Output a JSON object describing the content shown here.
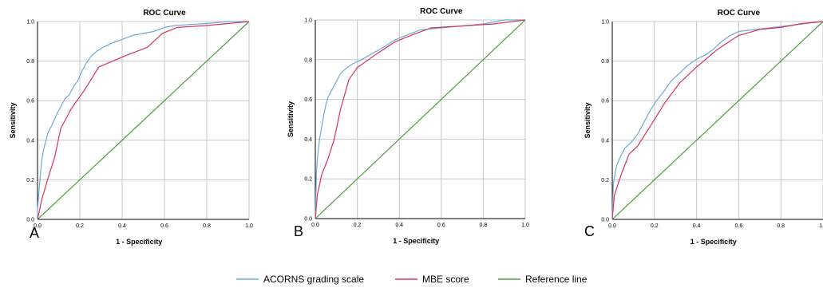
{
  "chart_data": [
    {
      "type": "line",
      "panel_label": "A",
      "title": "ROC Curve",
      "xlabel": "1 - Specificity",
      "ylabel": "Sensitivity",
      "xlim": [
        0,
        1
      ],
      "ylim": [
        0,
        1
      ],
      "xticks": [
        "0.0",
        "0.2",
        "0.4",
        "0.6",
        "0.8",
        "1.0"
      ],
      "yticks": [
        "0.0",
        "0.2",
        "0.4",
        "0.6",
        "0.8",
        "1.0"
      ],
      "grid": true,
      "series": [
        {
          "name": "ACORNS grading scale",
          "color": "#6fa8dc",
          "points": [
            [
              0,
              0
            ],
            [
              0,
              0.05
            ],
            [
              0.01,
              0.18
            ],
            [
              0.02,
              0.3
            ],
            [
              0.03,
              0.36
            ],
            [
              0.05,
              0.44
            ],
            [
              0.07,
              0.48
            ],
            [
              0.09,
              0.53
            ],
            [
              0.11,
              0.57
            ],
            [
              0.13,
              0.61
            ],
            [
              0.15,
              0.63
            ],
            [
              0.17,
              0.67
            ],
            [
              0.19,
              0.7
            ],
            [
              0.21,
              0.75
            ],
            [
              0.23,
              0.79
            ],
            [
              0.25,
              0.82
            ],
            [
              0.28,
              0.85
            ],
            [
              0.31,
              0.87
            ],
            [
              0.35,
              0.89
            ],
            [
              0.4,
              0.91
            ],
            [
              0.45,
              0.93
            ],
            [
              0.5,
              0.94
            ],
            [
              0.55,
              0.95
            ],
            [
              0.6,
              0.97
            ],
            [
              0.65,
              0.98
            ],
            [
              0.72,
              0.985
            ],
            [
              0.8,
              0.99
            ],
            [
              0.9,
              1.0
            ],
            [
              1.0,
              1.0
            ]
          ]
        },
        {
          "name": "MBE score",
          "color": "#d5345c",
          "points": [
            [
              0,
              0
            ],
            [
              0.02,
              0.1
            ],
            [
              0.05,
              0.21
            ],
            [
              0.08,
              0.31
            ],
            [
              0.11,
              0.46
            ],
            [
              0.16,
              0.56
            ],
            [
              0.22,
              0.65
            ],
            [
              0.29,
              0.77
            ],
            [
              0.4,
              0.82
            ],
            [
              0.52,
              0.87
            ],
            [
              0.59,
              0.94
            ],
            [
              0.66,
              0.97
            ],
            [
              0.8,
              0.98
            ],
            [
              0.9,
              0.99
            ],
            [
              1.0,
              1.0
            ]
          ]
        },
        {
          "name": "Reference line",
          "color": "#4e9b3f",
          "points": [
            [
              0,
              0
            ],
            [
              1,
              1
            ]
          ]
        }
      ]
    },
    {
      "type": "line",
      "panel_label": "B",
      "title": "ROC Curve",
      "xlabel": "1 - Specificity",
      "ylabel": "Sensitivity",
      "xlim": [
        0,
        1
      ],
      "ylim": [
        0,
        1
      ],
      "xticks": [
        "0.0",
        "0.2",
        "0.4",
        "0.6",
        "0.8",
        "1.0"
      ],
      "yticks": [
        "0.0",
        "0.2",
        "0.4",
        "0.6",
        "0.8",
        "1.0"
      ],
      "grid": true,
      "series": [
        {
          "name": "ACORNS grading scale",
          "color": "#6fa8dc",
          "points": [
            [
              0,
              0
            ],
            [
              0.005,
              0.22
            ],
            [
              0.01,
              0.3
            ],
            [
              0.02,
              0.4
            ],
            [
              0.03,
              0.46
            ],
            [
              0.04,
              0.52
            ],
            [
              0.05,
              0.57
            ],
            [
              0.06,
              0.61
            ],
            [
              0.08,
              0.65
            ],
            [
              0.1,
              0.69
            ],
            [
              0.12,
              0.73
            ],
            [
              0.15,
              0.76
            ],
            [
              0.18,
              0.78
            ],
            [
              0.22,
              0.8
            ],
            [
              0.27,
              0.83
            ],
            [
              0.32,
              0.86
            ],
            [
              0.38,
              0.9
            ],
            [
              0.45,
              0.93
            ],
            [
              0.5,
              0.95
            ],
            [
              0.6,
              0.96
            ],
            [
              0.7,
              0.97
            ],
            [
              0.8,
              0.98
            ],
            [
              0.9,
              1.0
            ],
            [
              1.0,
              1.0
            ]
          ]
        },
        {
          "name": "MBE score",
          "color": "#d5345c",
          "points": [
            [
              0,
              0
            ],
            [
              0.01,
              0.12
            ],
            [
              0.03,
              0.22
            ],
            [
              0.06,
              0.3
            ],
            [
              0.09,
              0.4
            ],
            [
              0.12,
              0.55
            ],
            [
              0.16,
              0.7
            ],
            [
              0.2,
              0.76
            ],
            [
              0.28,
              0.82
            ],
            [
              0.38,
              0.89
            ],
            [
              0.45,
              0.92
            ],
            [
              0.55,
              0.96
            ],
            [
              0.7,
              0.97
            ],
            [
              0.85,
              0.98
            ],
            [
              1.0,
              1.0
            ]
          ]
        },
        {
          "name": "Reference line",
          "color": "#4e9b3f",
          "points": [
            [
              0,
              0
            ],
            [
              1,
              1
            ]
          ]
        }
      ]
    },
    {
      "type": "line",
      "panel_label": "C",
      "title": "ROC Curve",
      "xlabel": "1 - Specificity",
      "ylabel": "Sensitivity",
      "xlim": [
        0,
        1
      ],
      "ylim": [
        0,
        1
      ],
      "xticks": [
        "0.0",
        "0.2",
        "0.4",
        "0.6",
        "0.8",
        "1.0"
      ],
      "yticks": [
        "0.0",
        "0.2",
        "0.4",
        "0.6",
        "0.8",
        "1.0"
      ],
      "grid": true,
      "series": [
        {
          "name": "ACORNS grading scale",
          "color": "#6fa8dc",
          "points": [
            [
              0,
              0
            ],
            [
              0.005,
              0.18
            ],
            [
              0.02,
              0.27
            ],
            [
              0.04,
              0.32
            ],
            [
              0.06,
              0.36
            ],
            [
              0.09,
              0.39
            ],
            [
              0.12,
              0.43
            ],
            [
              0.15,
              0.49
            ],
            [
              0.18,
              0.55
            ],
            [
              0.21,
              0.6
            ],
            [
              0.24,
              0.64
            ],
            [
              0.28,
              0.7
            ],
            [
              0.32,
              0.74
            ],
            [
              0.36,
              0.78
            ],
            [
              0.4,
              0.81
            ],
            [
              0.44,
              0.83
            ],
            [
              0.48,
              0.86
            ],
            [
              0.52,
              0.9
            ],
            [
              0.56,
              0.93
            ],
            [
              0.6,
              0.95
            ],
            [
              0.68,
              0.96
            ],
            [
              0.76,
              0.97
            ],
            [
              0.84,
              0.98
            ],
            [
              0.92,
              0.99
            ],
            [
              1.0,
              1.0
            ]
          ]
        },
        {
          "name": "MBE score",
          "color": "#d5345c",
          "points": [
            [
              0,
              0
            ],
            [
              0.01,
              0.12
            ],
            [
              0.04,
              0.22
            ],
            [
              0.08,
              0.33
            ],
            [
              0.12,
              0.37
            ],
            [
              0.18,
              0.47
            ],
            [
              0.25,
              0.59
            ],
            [
              0.32,
              0.69
            ],
            [
              0.4,
              0.77
            ],
            [
              0.5,
              0.86
            ],
            [
              0.6,
              0.93
            ],
            [
              0.7,
              0.96
            ],
            [
              0.8,
              0.97
            ],
            [
              0.9,
              0.99
            ],
            [
              1.0,
              1.0
            ]
          ]
        },
        {
          "name": "Reference line",
          "color": "#4e9b3f",
          "points": [
            [
              0,
              0
            ],
            [
              1,
              1
            ]
          ]
        }
      ]
    }
  ],
  "legend": {
    "items": [
      {
        "label": "ACORNS grading scale",
        "color": "#6fa8dc"
      },
      {
        "label": "MBE score",
        "color": "#d5345c"
      },
      {
        "label": "Reference line",
        "color": "#4e9b3f"
      }
    ]
  }
}
